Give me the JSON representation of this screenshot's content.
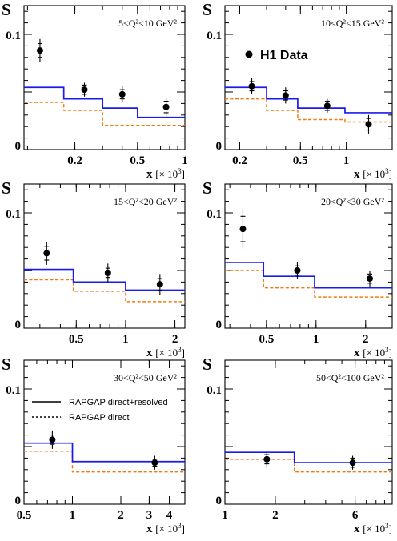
{
  "chart_data": [
    {
      "type": "step+scatter",
      "ylabel": "S",
      "xlabel": "x",
      "xlabel_unit": "[× 10",
      "xlabel_exp": "3",
      "range_label": "5<Q²<10 GeV²",
      "xscale": "log",
      "xlim": [
        0.095,
        1.0
      ],
      "ylim": [
        0,
        0.125
      ],
      "xticks_major": [
        {
          "v": 0.2,
          "label": "0.2"
        },
        {
          "v": 0.5,
          "label": "0.5"
        },
        {
          "v": 1.0,
          "label": "1"
        }
      ],
      "yticks_major": [
        {
          "v": 0,
          "label": "0"
        },
        {
          "v": 0.1,
          "label": "0.1"
        }
      ],
      "data": [
        {
          "x": 0.12,
          "y": 0.086,
          "estat": 0.006,
          "etot": 0.01
        },
        {
          "x": 0.23,
          "y": 0.052,
          "estat": 0.004,
          "etot": 0.006
        },
        {
          "x": 0.4,
          "y": 0.048,
          "estat": 0.004,
          "etot": 0.007
        },
        {
          "x": 0.76,
          "y": 0.037,
          "estat": 0.005,
          "etot": 0.008
        }
      ],
      "model_full": {
        "edges": [
          0.095,
          0.17,
          0.3,
          0.5,
          1.0
        ],
        "values": [
          0.054,
          0.044,
          0.036,
          0.028
        ]
      },
      "model_direct": {
        "edges": [
          0.095,
          0.17,
          0.3,
          0.5,
          1.0
        ],
        "values": [
          0.041,
          0.034,
          0.021,
          0.021
        ]
      }
    },
    {
      "type": "step+scatter",
      "ylabel": "S",
      "xlabel": "x",
      "xlabel_unit": "[× 10",
      "xlabel_exp": "3",
      "range_label": "10<Q²<15 GeV²",
      "legend_data": "H1 Data",
      "xscale": "log",
      "xlim": [
        0.16,
        2.0
      ],
      "ylim": [
        0,
        0.125
      ],
      "xticks_major": [
        {
          "v": 0.2,
          "label": "0.2"
        },
        {
          "v": 0.5,
          "label": "0.5"
        },
        {
          "v": 1.0,
          "label": "1"
        }
      ],
      "yticks_major": [
        {
          "v": 0,
          "label": "0"
        },
        {
          "v": 0.1,
          "label": "0.1"
        }
      ],
      "data": [
        {
          "x": 0.24,
          "y": 0.055,
          "estat": 0.004,
          "etot": 0.007
        },
        {
          "x": 0.4,
          "y": 0.047,
          "estat": 0.004,
          "etot": 0.007
        },
        {
          "x": 0.75,
          "y": 0.038,
          "estat": 0.004,
          "etot": 0.006
        },
        {
          "x": 1.4,
          "y": 0.022,
          "estat": 0.005,
          "etot": 0.008
        }
      ],
      "model_full": {
        "edges": [
          0.16,
          0.3,
          0.48,
          0.98,
          2.0
        ],
        "values": [
          0.054,
          0.044,
          0.036,
          0.032
        ]
      },
      "model_direct": {
        "edges": [
          0.16,
          0.3,
          0.48,
          0.98,
          2.0
        ],
        "values": [
          0.044,
          0.034,
          0.026,
          0.024
        ]
      }
    },
    {
      "type": "step+scatter",
      "ylabel": "S",
      "xlabel": "x",
      "xlabel_unit": "[× 10",
      "xlabel_exp": "3",
      "range_label": "15<Q²<20 GeV²",
      "xscale": "log",
      "xlim": [
        0.24,
        2.3
      ],
      "ylim": [
        0,
        0.125
      ],
      "xticks_major": [
        {
          "v": 0.5,
          "label": "0.5"
        },
        {
          "v": 1.0,
          "label": "1"
        },
        {
          "v": 2.0,
          "label": "2"
        }
      ],
      "yticks_major": [
        {
          "v": 0,
          "label": "0"
        },
        {
          "v": 0.1,
          "label": "0.1"
        }
      ],
      "data": [
        {
          "x": 0.33,
          "y": 0.065,
          "estat": 0.006,
          "etot": 0.01
        },
        {
          "x": 0.78,
          "y": 0.048,
          "estat": 0.004,
          "etot": 0.008
        },
        {
          "x": 1.62,
          "y": 0.038,
          "estat": 0.005,
          "etot": 0.009
        }
      ],
      "model_full": {
        "edges": [
          0.24,
          0.48,
          1.0,
          2.3
        ],
        "values": [
          0.051,
          0.04,
          0.033
        ]
      },
      "model_direct": {
        "edges": [
          0.24,
          0.48,
          1.0,
          2.3
        ],
        "values": [
          0.042,
          0.032,
          0.023
        ]
      }
    },
    {
      "type": "step+scatter",
      "ylabel": "S",
      "xlabel": "x",
      "xlabel_unit": "[× 10",
      "xlabel_exp": "3",
      "range_label": "20<Q²<30 GeV²",
      "xscale": "log",
      "xlim": [
        0.28,
        2.9
      ],
      "ylim": [
        0,
        0.125
      ],
      "xticks_major": [
        {
          "v": 0.5,
          "label": "0.5"
        },
        {
          "v": 1.0,
          "label": "1"
        },
        {
          "v": 2.0,
          "label": "2"
        }
      ],
      "yticks_major": [
        {
          "v": 0,
          "label": "0"
        },
        {
          "v": 0.1,
          "label": "0.1"
        }
      ],
      "data": [
        {
          "x": 0.36,
          "y": 0.086,
          "estat": 0.011,
          "etot": 0.017
        },
        {
          "x": 0.77,
          "y": 0.05,
          "estat": 0.004,
          "etot": 0.007
        },
        {
          "x": 2.12,
          "y": 0.043,
          "estat": 0.004,
          "etot": 0.007
        }
      ],
      "model_full": {
        "edges": [
          0.28,
          0.48,
          0.98,
          2.9
        ],
        "values": [
          0.057,
          0.045,
          0.035
        ]
      },
      "model_direct": {
        "edges": [
          0.28,
          0.48,
          0.98,
          2.9
        ],
        "values": [
          0.05,
          0.035,
          0.027
        ]
      }
    },
    {
      "type": "step+scatter",
      "ylabel": "S",
      "xlabel": "x",
      "xlabel_unit": "[× 10",
      "xlabel_exp": "3",
      "range_label": "30<Q²<50 GeV²",
      "legend_lines": [
        {
          "style": "solid",
          "label": "RAPGAP direct+resolved"
        },
        {
          "style": "dashed",
          "label": "RAPGAP direct"
        }
      ],
      "xscale": "log",
      "xlim": [
        0.5,
        5.0
      ],
      "ylim": [
        0,
        0.125
      ],
      "xticks_major": [
        {
          "v": 0.5,
          "label": "0.5"
        },
        {
          "v": 1.0,
          "label": "1"
        },
        {
          "v": 2.0,
          "label": "2"
        },
        {
          "v": 3.0,
          "label": "3"
        },
        {
          "v": 4.0,
          "label": "4"
        }
      ],
      "yticks_major": [
        {
          "v": 0,
          "label": "0"
        },
        {
          "v": 0.1,
          "label": "0.1"
        }
      ],
      "data": [
        {
          "x": 0.75,
          "y": 0.056,
          "estat": 0.004,
          "etot": 0.008
        },
        {
          "x": 3.25,
          "y": 0.036,
          "estat": 0.003,
          "etot": 0.006
        }
      ],
      "model_full": {
        "edges": [
          0.5,
          1.0,
          5.0
        ],
        "values": [
          0.053,
          0.037
        ]
      },
      "model_direct": {
        "edges": [
          0.5,
          1.0,
          5.0
        ],
        "values": [
          0.046,
          0.028
        ]
      }
    },
    {
      "type": "step+scatter",
      "ylabel": "S",
      "xlabel": "x",
      "xlabel_unit": "[× 10",
      "xlabel_exp": "3",
      "range_label": "50<Q²<100 GeV²",
      "xscale": "log",
      "xlim": [
        1.0,
        10.0
      ],
      "ylim": [
        0,
        0.125
      ],
      "xticks_major": [
        {
          "v": 1.0,
          "label": "1"
        },
        {
          "v": 2.0,
          "label": "2"
        },
        {
          "v": 6.0,
          "label": "6"
        }
      ],
      "yticks_major": [
        {
          "v": 0,
          "label": "0"
        },
        {
          "v": 0.1,
          "label": "0.1"
        }
      ],
      "data": [
        {
          "x": 1.78,
          "y": 0.039,
          "estat": 0.004,
          "etot": 0.007
        },
        {
          "x": 5.8,
          "y": 0.036,
          "estat": 0.004,
          "etot": 0.006
        }
      ],
      "model_full": {
        "edges": [
          1.0,
          2.6,
          10.0
        ],
        "values": [
          0.045,
          0.036
        ]
      },
      "model_direct": {
        "edges": [
          1.0,
          2.6,
          10.0
        ],
        "values": [
          0.039,
          0.028
        ]
      }
    }
  ],
  "colors": {
    "full": "#1a1aee",
    "direct": "#f07a10",
    "data": "#000000"
  }
}
